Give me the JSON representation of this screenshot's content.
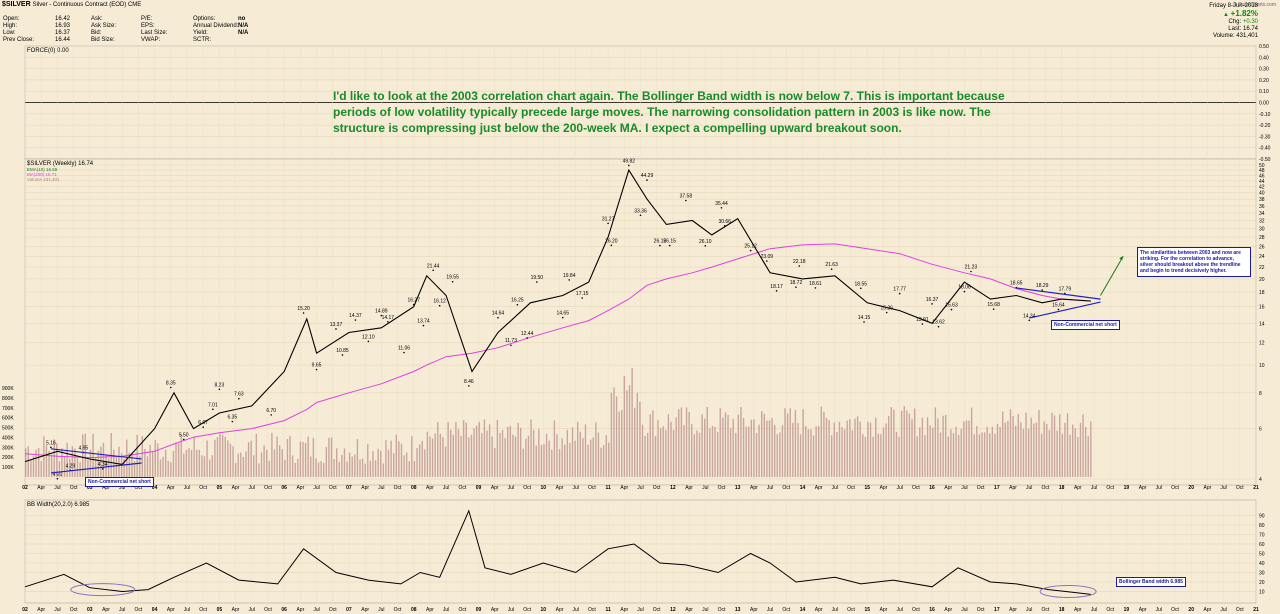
{
  "header": {
    "symbol": "$SILVER",
    "description": "Silver - Continuous Contract (EOD) CME",
    "col1": [
      "Open:",
      "High:",
      "Low:",
      "Prev Close:"
    ],
    "col1v": [
      "16.42",
      "16.93",
      "16.37",
      "16.44"
    ],
    "col2": [
      "Ask:",
      "Ask Size:",
      "Bid:",
      "Bid Size:"
    ],
    "col3": [
      "P/E:",
      "EPS:",
      "Last Size:",
      "VWAP:"
    ],
    "col4": [
      "Options:",
      "Annual Dividend:",
      "Yield:",
      "SCTR:"
    ],
    "col4v": [
      "no",
      "N/A",
      "N/A",
      ""
    ],
    "date": "Friday 8-Jun-2018",
    "change_pct": "+1.82%",
    "right_labels": [
      "Chg:",
      "Last:",
      "Volume:"
    ],
    "right_values": [
      "+0.30",
      "16.74",
      "431,401"
    ],
    "source": "© StockCharts.com"
  },
  "annotation": "I'd like to look at the 2003 correlation chart again. The Bollinger Band width is now below 7. This is important because periods of low volatility typically precede large moves. The narrowing consolidation pattern in 2003 is like now. The structure is compressing just below the 200-week MA. I expect a compelling upward breakout soon.",
  "callouts": {
    "non_commercial": "Non-Commercial net short",
    "similarity": "The similarities between 2003 and now are striking. For the correlation to advance, silver should breakout above the trendline and begin to trend decisively higher.",
    "bb": "Bollinger Band width 6.985"
  },
  "colors": {
    "background": "#f6ecd6",
    "price": "#000000",
    "ema": "#1a7a1a",
    "ma200": "#e040e0",
    "volume": "#b08080",
    "trendline": "#2020c0",
    "annotation": "#1a8a2a"
  },
  "chart_data": [
    {
      "type": "line",
      "title": "FORCE(0) 0.00",
      "series": [
        {
          "name": "FORCE(0)",
          "values": [
            0,
            0
          ]
        }
      ],
      "ylim": [
        -0.5,
        0.5
      ],
      "yticks": [
        "0.50",
        "0.40",
        "0.30",
        "0.20",
        "0.10",
        "0.00",
        "-0.10",
        "-0.20",
        "-0.30",
        "-0.40",
        "-0.50"
      ]
    },
    {
      "type": "line",
      "title": "$SILVER (Weekly) 16.74",
      "legend": [
        "EMA(10) 16.59",
        "MA(200) 16.71",
        "Volume 431,401"
      ],
      "x": [
        2002.0,
        2002.5,
        2003.0,
        2003.5,
        2004.0,
        2004.3,
        2004.6,
        2005.0,
        2005.5,
        2006.0,
        2006.35,
        2006.5,
        2007.0,
        2007.5,
        2008.0,
        2008.2,
        2008.5,
        2008.9,
        2009.3,
        2009.8,
        2010.3,
        2010.7,
        2011.0,
        2011.32,
        2011.6,
        2011.9,
        2012.3,
        2012.6,
        2013.0,
        2013.5,
        2014.0,
        2014.5,
        2015.0,
        2015.5,
        2016.0,
        2016.5,
        2016.9,
        2017.3,
        2017.7,
        2018.0,
        2018.45
      ],
      "series": [
        {
          "name": "$SILVER",
          "values": [
            4.6,
            5.0,
            4.7,
            4.5,
            6.0,
            8.0,
            6.0,
            6.8,
            7.2,
            9.5,
            14.5,
            11.0,
            13.0,
            13.5,
            16.0,
            20.5,
            17.5,
            9.5,
            13.0,
            16.5,
            17.5,
            19.5,
            28.0,
            48.0,
            38.0,
            31.0,
            32.0,
            28.5,
            32.5,
            21.0,
            20.0,
            20.5,
            16.5,
            15.5,
            14.0,
            19.5,
            17.0,
            17.5,
            16.5,
            17.0,
            16.74
          ]
        },
        {
          "name": "MA(200)",
          "values": [
            4.9,
            4.8,
            4.75,
            4.8,
            5.0,
            5.3,
            5.6,
            5.8,
            6.0,
            6.4,
            7.0,
            7.4,
            8.0,
            8.6,
            9.5,
            10.0,
            10.7,
            11.0,
            11.5,
            12.5,
            13.5,
            14.3,
            15.5,
            17.0,
            19.0,
            20.0,
            21.0,
            22.0,
            23.5,
            25.5,
            26.3,
            26.5,
            25.5,
            24.5,
            22.5,
            21.0,
            20.0,
            18.5,
            17.5,
            17.0,
            16.71
          ]
        }
      ],
      "points": [
        {
          "x": 2002.4,
          "y": 5.16,
          "label": "5.16"
        },
        {
          "x": 2002.5,
          "y": 4.01,
          "label": "4.01"
        },
        {
          "x": 2002.9,
          "y": 4.95,
          "label": "4.95"
        },
        {
          "x": 2002.7,
          "y": 4.29,
          "label": "4.29"
        },
        {
          "x": 2003.2,
          "y": 4.34,
          "label": "4.34"
        },
        {
          "x": 2004.25,
          "y": 8.35,
          "label": "8.35"
        },
        {
          "x": 2004.45,
          "y": 5.5,
          "label": "5.50"
        },
        {
          "x": 2005.0,
          "y": 8.23,
          "label": "8.23"
        },
        {
          "x": 2004.9,
          "y": 7.01,
          "label": "7.01"
        },
        {
          "x": 2004.75,
          "y": 6.07,
          "label": "6.07"
        },
        {
          "x": 2005.3,
          "y": 7.63,
          "label": "7.63"
        },
        {
          "x": 2005.2,
          "y": 6.35,
          "label": "6.35"
        },
        {
          "x": 2005.8,
          "y": 6.7,
          "label": "6.70"
        },
        {
          "x": 2006.3,
          "y": 15.2,
          "label": "15.20"
        },
        {
          "x": 2006.5,
          "y": 9.65,
          "label": "9.65"
        },
        {
          "x": 2006.8,
          "y": 13.37,
          "label": "13.37"
        },
        {
          "x": 2006.9,
          "y": 10.85,
          "label": "10.85"
        },
        {
          "x": 2007.1,
          "y": 14.37,
          "label": "14.37"
        },
        {
          "x": 2007.3,
          "y": 12.1,
          "label": "12.10"
        },
        {
          "x": 2007.5,
          "y": 14.89,
          "label": "14.89"
        },
        {
          "x": 2007.6,
          "y": 14.17,
          "label": "14.17"
        },
        {
          "x": 2007.85,
          "y": 11.06,
          "label": "11.06"
        },
        {
          "x": 2008.0,
          "y": 16.27,
          "label": "16.27"
        },
        {
          "x": 2008.15,
          "y": 13.74,
          "label": "13.74"
        },
        {
          "x": 2008.3,
          "y": 21.44,
          "label": "21.44"
        },
        {
          "x": 2008.4,
          "y": 16.12,
          "label": "16.12"
        },
        {
          "x": 2008.6,
          "y": 19.55,
          "label": "19.55"
        },
        {
          "x": 2008.85,
          "y": 8.46,
          "label": "8.46"
        },
        {
          "x": 2009.3,
          "y": 14.64,
          "label": "14.64"
        },
        {
          "x": 2009.5,
          "y": 11.73,
          "label": "11.73"
        },
        {
          "x": 2009.6,
          "y": 16.25,
          "label": "16.25"
        },
        {
          "x": 2009.75,
          "y": 12.44,
          "label": "12.44"
        },
        {
          "x": 2009.9,
          "y": 19.5,
          "label": "19.50"
        },
        {
          "x": 2010.3,
          "y": 14.65,
          "label": "14.65"
        },
        {
          "x": 2010.4,
          "y": 19.84,
          "label": "19.84"
        },
        {
          "x": 2010.6,
          "y": 17.15,
          "label": "17.15"
        },
        {
          "x": 2011.0,
          "y": 31.27,
          "label": "31.27"
        },
        {
          "x": 2011.05,
          "y": 26.2,
          "label": "26.20"
        },
        {
          "x": 2011.32,
          "y": 49.82,
          "label": "49.82"
        },
        {
          "x": 2011.5,
          "y": 33.36,
          "label": "33.36"
        },
        {
          "x": 2011.6,
          "y": 44.29,
          "label": "44.29"
        },
        {
          "x": 2011.8,
          "y": 26.15,
          "label": "26.15"
        },
        {
          "x": 2011.95,
          "y": 26.15,
          "label": "26.15"
        },
        {
          "x": 2012.2,
          "y": 37.58,
          "label": "37.58"
        },
        {
          "x": 2012.5,
          "y": 26.1,
          "label": "26.10"
        },
        {
          "x": 2012.75,
          "y": 35.44,
          "label": "35.44"
        },
        {
          "x": 2012.8,
          "y": 30.66,
          "label": "30.66"
        },
        {
          "x": 2013.2,
          "y": 25.12,
          "label": "25.12"
        },
        {
          "x": 2013.45,
          "y": 23.09,
          "label": "23.09"
        },
        {
          "x": 2013.6,
          "y": 18.17,
          "label": "18.17"
        },
        {
          "x": 2013.9,
          "y": 18.72,
          "label": "18.72"
        },
        {
          "x": 2013.95,
          "y": 22.18,
          "label": "22.18"
        },
        {
          "x": 2014.2,
          "y": 18.61,
          "label": "18.61"
        },
        {
          "x": 2014.45,
          "y": 21.63,
          "label": "21.63"
        },
        {
          "x": 2014.9,
          "y": 18.55,
          "label": "18.55"
        },
        {
          "x": 2014.95,
          "y": 14.15,
          "label": "14.15"
        },
        {
          "x": 2015.3,
          "y": 15.26,
          "label": "15.26"
        },
        {
          "x": 2015.5,
          "y": 17.77,
          "label": "17.77"
        },
        {
          "x": 2015.85,
          "y": 13.91,
          "label": "13.91"
        },
        {
          "x": 2016.0,
          "y": 16.37,
          "label": "16.37"
        },
        {
          "x": 2016.1,
          "y": 13.62,
          "label": "13.62"
        },
        {
          "x": 2016.3,
          "y": 15.63,
          "label": "15.63"
        },
        {
          "x": 2016.5,
          "y": 18.06,
          "label": "18.06"
        },
        {
          "x": 2016.6,
          "y": 21.23,
          "label": "21.23"
        },
        {
          "x": 2016.95,
          "y": 15.68,
          "label": "15.68"
        },
        {
          "x": 2017.3,
          "y": 18.65,
          "label": "18.65"
        },
        {
          "x": 2017.5,
          "y": 14.34,
          "label": "14.34"
        },
        {
          "x": 2017.7,
          "y": 18.29,
          "label": "18.29"
        },
        {
          "x": 2017.95,
          "y": 15.64,
          "label": "15.64"
        },
        {
          "x": 2018.05,
          "y": 17.79,
          "label": "17.79"
        }
      ],
      "xlim": [
        2002.0,
        2021.0
      ],
      "ylog": true,
      "ylim": [
        4,
        50
      ],
      "yticks": [
        50,
        48,
        46,
        44,
        42,
        40,
        38,
        36,
        34,
        32,
        30,
        28,
        26,
        24,
        22,
        20,
        18,
        16,
        14,
        12,
        10,
        8,
        6,
        4
      ],
      "vol_yticks": [
        "900K",
        "800K",
        "700K",
        "600K",
        "500K",
        "400K",
        "300K",
        "200K",
        "100K"
      ],
      "xticks": [
        "02",
        "Apr",
        "Jul",
        "Oct",
        "03",
        "Apr",
        "Jul",
        "Oct",
        "04",
        "Apr",
        "Jul",
        "Oct",
        "05",
        "Apr",
        "Jul",
        "Oct",
        "06",
        "Apr",
        "Jul",
        "Oct",
        "07",
        "Apr",
        "Jul",
        "Oct",
        "08",
        "Apr",
        "Jul",
        "Oct",
        "09",
        "Apr",
        "Jul",
        "Oct",
        "10",
        "Apr",
        "Jul",
        "Oct",
        "11",
        "Apr",
        "Jul",
        "Oct",
        "12",
        "Apr",
        "Jul",
        "Oct",
        "13",
        "Apr",
        "Jul",
        "Oct",
        "14",
        "Apr",
        "Jul",
        "Oct",
        "15",
        "Apr",
        "Jul",
        "Oct",
        "16",
        "Apr",
        "Jul",
        "Oct",
        "17",
        "Apr",
        "Jul",
        "Oct",
        "18",
        "Apr",
        "Jul",
        "Oct",
        "19",
        "Apr",
        "Jul",
        "Oct",
        "20",
        "Apr",
        "Jul",
        "Oct",
        "21"
      ]
    },
    {
      "type": "line",
      "title": "BB Width(20,2.0) 6.985",
      "x": [
        2002.0,
        2002.6,
        2003.0,
        2003.5,
        2003.9,
        2004.3,
        2004.8,
        2005.3,
        2005.9,
        2006.3,
        2006.8,
        2007.3,
        2007.8,
        2008.1,
        2008.4,
        2008.85,
        2009.1,
        2009.5,
        2010.0,
        2010.5,
        2011.0,
        2011.4,
        2011.8,
        2012.2,
        2012.7,
        2013.2,
        2013.5,
        2013.9,
        2014.5,
        2014.9,
        2015.4,
        2016.0,
        2016.4,
        2016.9,
        2017.3,
        2017.8,
        2018.2,
        2018.45
      ],
      "series": [
        {
          "name": "BB Width(20,2.0)",
          "values": [
            15,
            28,
            14,
            10,
            12,
            25,
            40,
            22,
            18,
            55,
            30,
            22,
            18,
            30,
            25,
            95,
            35,
            28,
            40,
            30,
            55,
            60,
            40,
            38,
            30,
            50,
            40,
            20,
            25,
            18,
            22,
            15,
            35,
            20,
            18,
            12,
            9,
            6.985
          ]
        }
      ],
      "ylim": [
        0,
        100
      ],
      "yticks": [
        90,
        80,
        70,
        60,
        50,
        40,
        30,
        20,
        10
      ]
    }
  ]
}
